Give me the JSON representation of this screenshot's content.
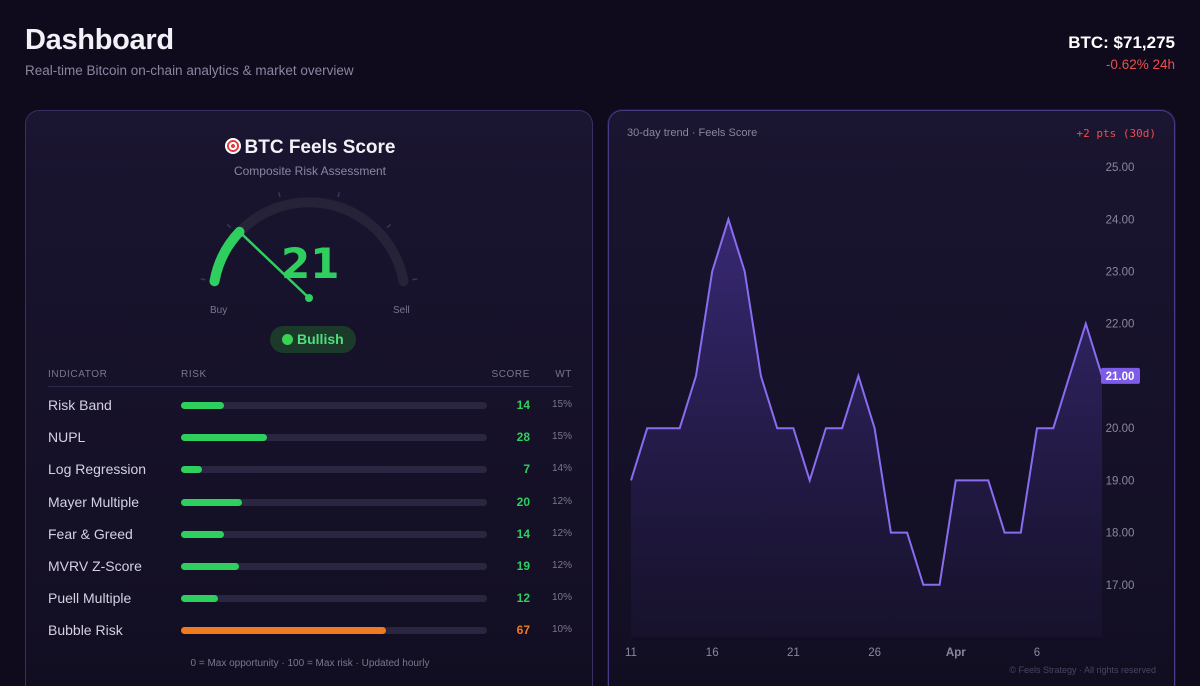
{
  "header": {
    "title": "Dashboard",
    "subtitle": "Real-time Bitcoin on-chain analytics & market overview",
    "price": "BTC: $71,275",
    "change": "-0.62% 24h"
  },
  "score_card": {
    "title": "BTC Feels Score",
    "subtitle": "Composite Risk Assessment",
    "score": "21",
    "score_fraction": 0.21,
    "buy_label": "Buy",
    "sell_label": "Sell",
    "status": "Bullish",
    "columns": {
      "indicator": "INDICATOR",
      "risk": "RISK",
      "score": "SCORE",
      "wt": "WT"
    },
    "indicators": [
      {
        "name": "Risk Band",
        "score": 14,
        "wt": "15%",
        "level": "low"
      },
      {
        "name": "NUPL",
        "score": 28,
        "wt": "15%",
        "level": "low"
      },
      {
        "name": "Log Regression",
        "score": 7,
        "wt": "14%",
        "level": "low"
      },
      {
        "name": "Mayer Multiple",
        "score": 20,
        "wt": "12%",
        "level": "low"
      },
      {
        "name": "Fear & Greed",
        "score": 14,
        "wt": "12%",
        "level": "low"
      },
      {
        "name": "MVRV Z-Score",
        "score": 19,
        "wt": "12%",
        "level": "low"
      },
      {
        "name": "Puell Multiple",
        "score": 12,
        "wt": "10%",
        "level": "low"
      },
      {
        "name": "Bubble Risk",
        "score": 67,
        "wt": "10%",
        "level": "high"
      }
    ],
    "footnote": "0 = Max opportunity · 100 = Max risk · Updated hourly"
  },
  "trend_card": {
    "label": "30-day trend · Feels Score",
    "change": "+2 pts (30d)",
    "watermark": "© Feels Strategy · All rights reserved",
    "current_label": "21.00"
  },
  "chart_data": {
    "type": "area",
    "title": "30-day trend · Feels Score",
    "x_ticks": [
      "11",
      "16",
      "21",
      "26",
      "Apr",
      "6"
    ],
    "x_tick_index": [
      0,
      5,
      10,
      15,
      20,
      25
    ],
    "y_ticks": [
      "17.00",
      "18.00",
      "19.00",
      "20.00",
      "21.00",
      "22.00",
      "23.00",
      "24.00",
      "25.00"
    ],
    "ylim": [
      16,
      25.5
    ],
    "values": [
      19,
      20,
      20,
      20,
      21,
      23,
      24,
      23,
      21,
      20,
      20,
      19,
      20,
      20,
      21,
      20,
      18,
      18,
      17,
      17,
      19,
      19,
      19,
      18,
      18,
      20,
      20,
      21,
      22,
      21
    ],
    "current_value": 21,
    "colors": {
      "line": "#8a6cf0",
      "fill_top": "#3a2a78",
      "fill_bottom": "#1a1432",
      "highlight": "#7c5ce8"
    }
  },
  "colors": {
    "green": "#2fcf5f",
    "orange": "#f07a1f",
    "red": "#ef4d4d"
  }
}
